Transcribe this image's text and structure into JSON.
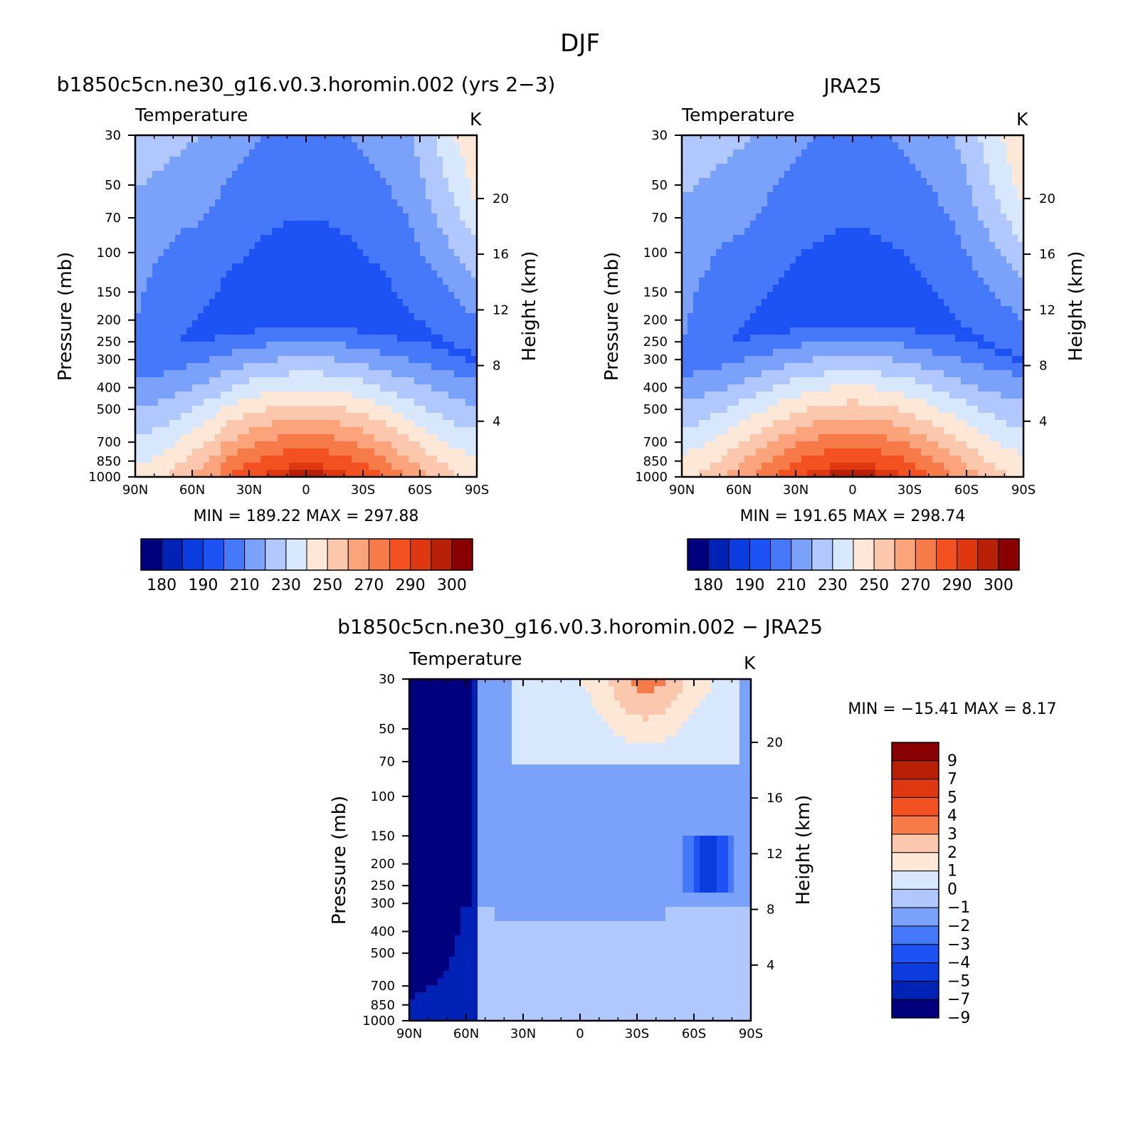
{
  "figure": {
    "title": "DJF",
    "background": "#ffffff"
  },
  "colors": {
    "cold_to_warm_16": [
      "#00007f",
      "#0022b4",
      "#0b3ce0",
      "#1d52f5",
      "#4678fa",
      "#7aa2fb",
      "#b0c8fd",
      "#d8e8fc",
      "#fde7d6",
      "#fcc8ad",
      "#fba47c",
      "#f77b48",
      "#f45120",
      "#de3810",
      "#b82006",
      "#880000"
    ],
    "difference_12": [
      "#880000",
      "#b82006",
      "#de3810",
      "#f45120",
      "#f77b48",
      "#fcc8ad",
      "#fde7d6",
      "#d8e8fc",
      "#b0c8fd",
      "#7aa2fb",
      "#4678fa",
      "#1d52f5",
      "#0b3ce0",
      "#0022b4",
      "#00007f"
    ]
  },
  "chart_data": [
    {
      "type": "heatmap",
      "title": "b1850c5cn.ne30_g16.v0.3.horomin.002 (yrs 2−3)",
      "variable_label": "Temperature",
      "units_label": "K",
      "xlabel": "",
      "ylabel": "Pressure (mb)",
      "y2label": "Height (km)",
      "x_ticks": [
        "90N",
        "60N",
        "30N",
        "0",
        "30S",
        "60S",
        "90S"
      ],
      "x_values": [
        90,
        60,
        30,
        0,
        -30,
        -60,
        -90
      ],
      "y_ticks": [
        30,
        50,
        70,
        100,
        150,
        200,
        250,
        300,
        400,
        500,
        700,
        850,
        1000
      ],
      "y_scale": "log",
      "ylim": [
        1000,
        30
      ],
      "y2_ticks": [
        4,
        8,
        12,
        16,
        20
      ],
      "stats": "MIN =  189.22   MAX =  297.88",
      "min": 189.22,
      "max": 297.88,
      "colorbar": {
        "orientation": "horizontal",
        "levels": [
          180,
          185,
          190,
          200,
          210,
          220,
          230,
          240,
          250,
          260,
          270,
          280,
          290,
          295,
          300
        ],
        "labels": [
          "180",
          "190",
          "210",
          "230",
          "250",
          "270",
          "290",
          "300"
        ]
      }
    },
    {
      "type": "heatmap",
      "title": "JRA25",
      "variable_label": "Temperature",
      "units_label": "K",
      "xlabel": "",
      "ylabel": "Pressure (mb)",
      "y2label": "Height (km)",
      "x_ticks": [
        "90N",
        "60N",
        "30N",
        "0",
        "30S",
        "60S",
        "90S"
      ],
      "x_values": [
        90,
        60,
        30,
        0,
        -30,
        -60,
        -90
      ],
      "y_ticks": [
        30,
        50,
        70,
        100,
        150,
        200,
        250,
        300,
        400,
        500,
        700,
        850,
        1000
      ],
      "y_scale": "log",
      "ylim": [
        1000,
        30
      ],
      "y2_ticks": [
        4,
        8,
        12,
        16,
        20
      ],
      "stats": "MIN =  191.65   MAX =  298.74",
      "min": 191.65,
      "max": 298.74,
      "colorbar": {
        "orientation": "horizontal",
        "levels": [
          180,
          185,
          190,
          200,
          210,
          220,
          230,
          240,
          250,
          260,
          270,
          280,
          290,
          295,
          300
        ],
        "labels": [
          "180",
          "190",
          "210",
          "230",
          "250",
          "270",
          "290",
          "300"
        ]
      }
    },
    {
      "type": "heatmap",
      "title": "b1850c5cn.ne30_g16.v0.3.horomin.002 − JRA25",
      "variable_label": "Temperature",
      "units_label": "K",
      "xlabel": "",
      "ylabel": "Pressure (mb)",
      "y2label": "Height (km)",
      "x_ticks": [
        "90N",
        "60N",
        "30N",
        "0",
        "30S",
        "60S",
        "90S"
      ],
      "x_values": [
        90,
        60,
        30,
        0,
        -30,
        -60,
        -90
      ],
      "y_ticks": [
        30,
        50,
        70,
        100,
        150,
        200,
        250,
        300,
        400,
        500,
        700,
        850,
        1000
      ],
      "y_scale": "log",
      "ylim": [
        1000,
        30
      ],
      "y2_ticks": [
        4,
        8,
        12,
        16,
        20
      ],
      "stats": "MIN = −15.41   MAX =    8.17",
      "min": -15.41,
      "max": 8.17,
      "colorbar": {
        "orientation": "vertical",
        "levels": [
          9,
          7,
          5,
          4,
          3,
          2,
          1,
          0,
          -1,
          -2,
          -3,
          -4,
          -5,
          -7,
          -9
        ],
        "labels": [
          "9",
          "7",
          "5",
          "4",
          "3",
          "2",
          "1",
          "0",
          "−1",
          "−2",
          "−3",
          "−4",
          "−5",
          "−7",
          "−9"
        ]
      }
    }
  ]
}
